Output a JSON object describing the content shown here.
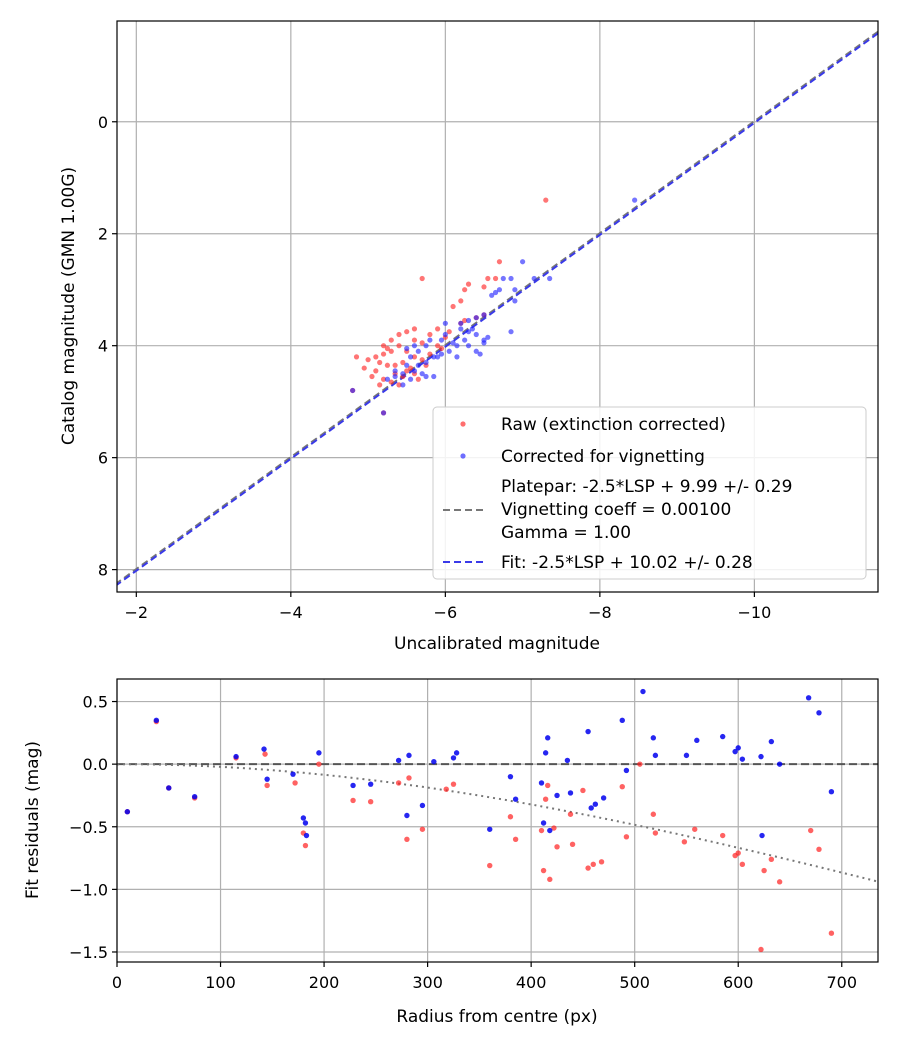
{
  "chart_data": [
    {
      "type": "scatter",
      "xlabel": "Uncalibrated magnitude",
      "ylabel": "Catalog magnitude (GMN 1.00G)",
      "xlim": [
        -1.75,
        -11.6
      ],
      "ylim": [
        8.4,
        -1.8
      ],
      "xticks": [
        -2,
        -4,
        -6,
        -8,
        -10
      ],
      "xtick_labels": [
        "−2",
        "−4",
        "−6",
        "−8",
        "−10"
      ],
      "yticks": [
        0,
        2,
        4,
        6,
        8
      ],
      "ytick_labels": [
        "0",
        "2",
        "4",
        "6",
        "8"
      ],
      "grid": true,
      "legend_position": "lower-right",
      "legend": {
        "raw": "Raw (extinction corrected)",
        "corrected": "Corrected for vignetting",
        "platepar_lines": [
          "Platepar: -2.5*LSP + 9.99 +/- 0.29",
          "Vignetting coeff = 0.00100",
          "Gamma = 1.00"
        ],
        "fit": "Fit: -2.5*LSP + 10.02 +/- 0.28"
      },
      "colors": {
        "raw": "#ff2020",
        "corrected": "#2020ff",
        "platepar": "#777777",
        "fit": "#3a3ae8"
      },
      "lines": [
        {
          "name": "Platepar",
          "intercept": 9.99,
          "slope": 1,
          "style": "dashed"
        },
        {
          "name": "Fit",
          "intercept": 10.02,
          "slope": 1,
          "style": "dashed"
        }
      ],
      "series": [
        {
          "name": "Raw (extinction corrected)",
          "points": [
            [
              -7.3,
              1.4
            ],
            [
              -6.7,
              2.5
            ],
            [
              -6.65,
              2.8
            ],
            [
              -6.3,
              2.9
            ],
            [
              -6.5,
              2.95
            ],
            [
              -6.55,
              2.8
            ],
            [
              -6.25,
              3.0
            ],
            [
              -6.2,
              3.2
            ],
            [
              -6.1,
              3.3
            ],
            [
              -5.7,
              2.8
            ],
            [
              -6.4,
              3.5
            ],
            [
              -6.5,
              3.45
            ],
            [
              -6.25,
              3.55
            ],
            [
              -6.2,
              3.6
            ],
            [
              -5.9,
              3.7
            ],
            [
              -5.8,
              3.8
            ],
            [
              -5.6,
              3.7
            ],
            [
              -5.5,
              3.75
            ],
            [
              -5.4,
              3.8
            ],
            [
              -5.3,
              3.9
            ],
            [
              -5.2,
              4.0
            ],
            [
              -5.4,
              4.0
            ],
            [
              -5.5,
              4.1
            ],
            [
              -5.7,
              3.95
            ],
            [
              -5.9,
              4.0
            ],
            [
              -5.6,
              3.9
            ],
            [
              -5.3,
              4.1
            ],
            [
              -5.2,
              4.15
            ],
            [
              -5.1,
              4.2
            ],
            [
              -5.0,
              4.25
            ],
            [
              -5.15,
              4.3
            ],
            [
              -5.25,
              4.35
            ],
            [
              -5.45,
              4.3
            ],
            [
              -5.6,
              4.2
            ],
            [
              -5.7,
              4.25
            ],
            [
              -5.8,
              4.15
            ],
            [
              -5.55,
              4.4
            ],
            [
              -5.35,
              4.5
            ],
            [
              -5.2,
              4.6
            ],
            [
              -5.15,
              4.7
            ],
            [
              -5.3,
              4.65
            ],
            [
              -5.45,
              4.55
            ],
            [
              -5.6,
              4.5
            ],
            [
              -5.1,
              4.45
            ],
            [
              -4.95,
              4.4
            ],
            [
              -5.05,
              4.55
            ],
            [
              -4.85,
              4.2
            ],
            [
              -5.25,
              4.05
            ],
            [
              -5.75,
              4.35
            ],
            [
              -5.95,
              4.05
            ],
            [
              -6.0,
              3.85
            ],
            [
              -6.05,
              3.75
            ],
            [
              -5.65,
              4.6
            ],
            [
              -5.4,
              4.7
            ],
            [
              -5.2,
              5.2
            ],
            [
              -4.8,
              4.8
            ],
            [
              -5.5,
              4.45
            ],
            [
              -5.35,
              4.35
            ]
          ]
        },
        {
          "name": "Corrected for vignetting",
          "points": [
            [
              -8.45,
              1.4
            ],
            [
              -7.0,
              2.5
            ],
            [
              -7.15,
              2.8
            ],
            [
              -6.85,
              2.8
            ],
            [
              -6.75,
              2.8
            ],
            [
              -6.9,
              3.0
            ],
            [
              -6.7,
              3.0
            ],
            [
              -6.6,
              3.1
            ],
            [
              -6.9,
              3.2
            ],
            [
              -6.5,
              3.45
            ],
            [
              -6.4,
              3.5
            ],
            [
              -6.3,
              3.55
            ],
            [
              -6.35,
              3.7
            ],
            [
              -6.2,
              3.6
            ],
            [
              -6.2,
              3.7
            ],
            [
              -6.0,
              3.6
            ],
            [
              -6.85,
              3.75
            ],
            [
              -6.55,
              3.85
            ],
            [
              -6.4,
              3.8
            ],
            [
              -6.5,
              3.9
            ],
            [
              -6.4,
              4.1
            ],
            [
              -6.25,
              3.9
            ],
            [
              -6.15,
              4.0
            ],
            [
              -6.05,
              4.1
            ],
            [
              -5.95,
              4.15
            ],
            [
              -5.85,
              4.2
            ],
            [
              -5.75,
              4.0
            ],
            [
              -5.65,
              4.1
            ],
            [
              -5.55,
              4.2
            ],
            [
              -5.8,
              3.9
            ],
            [
              -5.9,
              4.2
            ],
            [
              -5.75,
              4.3
            ],
            [
              -5.5,
              4.35
            ],
            [
              -5.45,
              4.5
            ],
            [
              -5.35,
              4.55
            ],
            [
              -5.6,
              4.45
            ],
            [
              -5.7,
              4.5
            ],
            [
              -5.45,
              4.7
            ],
            [
              -5.25,
              4.6
            ],
            [
              -5.55,
              4.6
            ],
            [
              -5.85,
              4.55
            ],
            [
              -5.75,
              4.55
            ],
            [
              -6.3,
              4.0
            ],
            [
              -6.5,
              3.95
            ],
            [
              -6.1,
              3.95
            ],
            [
              -7.35,
              2.8
            ],
            [
              -5.2,
              5.2
            ],
            [
              -4.8,
              4.8
            ],
            [
              -6.65,
              3.05
            ],
            [
              -6.15,
              4.2
            ],
            [
              -6.45,
              4.15
            ],
            [
              -5.35,
              4.45
            ],
            [
              -5.65,
              4.35
            ],
            [
              -6.0,
              3.8
            ],
            [
              -5.5,
              4.05
            ],
            [
              -6.3,
              3.75
            ],
            [
              -5.95,
              3.9
            ],
            [
              -5.6,
              4.0
            ]
          ]
        }
      ]
    },
    {
      "type": "scatter",
      "xlabel": "Radius from centre (px)",
      "ylabel": "Fit residuals (mag)",
      "xlim": [
        0,
        735
      ],
      "ylim": [
        -1.58,
        0.68
      ],
      "xticks": [
        0,
        100,
        200,
        300,
        400,
        500,
        600,
        700
      ],
      "xtick_labels": [
        "0",
        "100",
        "200",
        "300",
        "400",
        "500",
        "600",
        "700"
      ],
      "yticks": [
        0.5,
        0.0,
        -0.5,
        -1.0,
        -1.5
      ],
      "ytick_labels": [
        "0.5",
        "0.0",
        "−0.5",
        "−1.0",
        "−1.5"
      ],
      "grid": true,
      "colors": {
        "raw": "#ff2020",
        "corrected": "#0000ee",
        "zero_line": "#555555",
        "model": "#777777"
      },
      "reference_lines": [
        {
          "name": "zero",
          "y": 0,
          "style": "dashed"
        },
        {
          "name": "vignetting model",
          "style": "dotted",
          "formula": "-2.5*log10(cos(atan(0.00100*r))^4)"
        }
      ],
      "series": [
        {
          "name": "Raw (extinction corrected)",
          "points": [
            [
              10,
              -0.38
            ],
            [
              38,
              0.34
            ],
            [
              50,
              -0.19
            ],
            [
              75,
              -0.27
            ],
            [
              115,
              0.05
            ],
            [
              143,
              0.08
            ],
            [
              145,
              -0.17
            ],
            [
              172,
              -0.15
            ],
            [
              180,
              -0.55
            ],
            [
              182,
              -0.65
            ],
            [
              195,
              0.0
            ],
            [
              228,
              -0.29
            ],
            [
              245,
              -0.3
            ],
            [
              272,
              -0.15
            ],
            [
              280,
              -0.6
            ],
            [
              282,
              -0.11
            ],
            [
              295,
              -0.52
            ],
            [
              318,
              -0.2
            ],
            [
              325,
              -0.16
            ],
            [
              360,
              -0.81
            ],
            [
              380,
              -0.42
            ],
            [
              385,
              -0.6
            ],
            [
              410,
              -0.53
            ],
            [
              412,
              -0.85
            ],
            [
              414,
              -0.28
            ],
            [
              416,
              -0.17
            ],
            [
              418,
              -0.92
            ],
            [
              422,
              -0.51
            ],
            [
              425,
              -0.66
            ],
            [
              438,
              -0.4
            ],
            [
              440,
              -0.64
            ],
            [
              450,
              -0.21
            ],
            [
              455,
              -0.83
            ],
            [
              460,
              -0.8
            ],
            [
              468,
              -0.78
            ],
            [
              488,
              -0.18
            ],
            [
              492,
              -0.58
            ],
            [
              505,
              0.0
            ],
            [
              518,
              -0.4
            ],
            [
              520,
              -0.55
            ],
            [
              548,
              -0.62
            ],
            [
              558,
              -0.52
            ],
            [
              585,
              -0.57
            ],
            [
              597,
              -0.73
            ],
            [
              600,
              -0.71
            ],
            [
              604,
              -0.8
            ],
            [
              622,
              -1.48
            ],
            [
              625,
              -0.85
            ],
            [
              632,
              -0.76
            ],
            [
              640,
              -0.94
            ],
            [
              670,
              -0.53
            ],
            [
              678,
              -0.68
            ],
            [
              690,
              -1.35
            ]
          ]
        },
        {
          "name": "Corrected for vignetting",
          "points": [
            [
              10,
              -0.38
            ],
            [
              38,
              0.35
            ],
            [
              50,
              -0.19
            ],
            [
              75,
              -0.26
            ],
            [
              115,
              0.06
            ],
            [
              142,
              0.12
            ],
            [
              145,
              -0.12
            ],
            [
              170,
              -0.08
            ],
            [
              180,
              -0.43
            ],
            [
              182,
              -0.47
            ],
            [
              183,
              -0.57
            ],
            [
              195,
              0.09
            ],
            [
              228,
              -0.17
            ],
            [
              245,
              -0.16
            ],
            [
              272,
              0.03
            ],
            [
              280,
              -0.41
            ],
            [
              282,
              0.07
            ],
            [
              295,
              -0.33
            ],
            [
              306,
              0.02
            ],
            [
              325,
              0.05
            ],
            [
              328,
              0.09
            ],
            [
              360,
              -0.52
            ],
            [
              380,
              -0.1
            ],
            [
              385,
              -0.28
            ],
            [
              410,
              -0.15
            ],
            [
              412,
              -0.47
            ],
            [
              414,
              0.09
            ],
            [
              416,
              0.21
            ],
            [
              418,
              -0.53
            ],
            [
              425,
              -0.25
            ],
            [
              435,
              0.03
            ],
            [
              438,
              -0.23
            ],
            [
              455,
              0.26
            ],
            [
              458,
              -0.35
            ],
            [
              462,
              -0.32
            ],
            [
              470,
              -0.27
            ],
            [
              488,
              0.35
            ],
            [
              492,
              -0.05
            ],
            [
              508,
              0.58
            ],
            [
              518,
              0.21
            ],
            [
              520,
              0.07
            ],
            [
              550,
              0.07
            ],
            [
              560,
              0.19
            ],
            [
              585,
              0.22
            ],
            [
              597,
              0.1
            ],
            [
              600,
              0.13
            ],
            [
              604,
              0.04
            ],
            [
              622,
              0.06
            ],
            [
              623,
              -0.57
            ],
            [
              632,
              0.18
            ],
            [
              640,
              0.0
            ],
            [
              668,
              0.53
            ],
            [
              678,
              0.41
            ],
            [
              690,
              -0.22
            ]
          ]
        }
      ]
    }
  ]
}
